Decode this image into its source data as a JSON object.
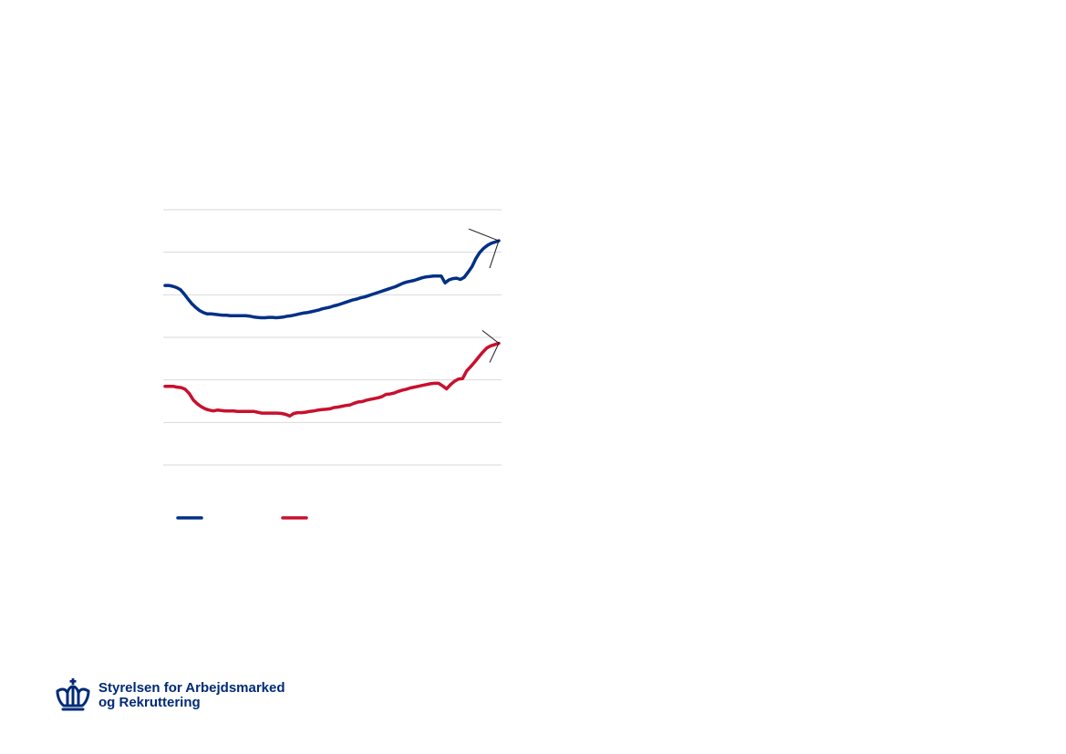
{
  "org": {
    "name_line1": "Styrelsen for Arbejdsmarked",
    "name_line2": "og Rekruttering",
    "logo_icon": "crown-icon",
    "brand_color": "#002a78"
  },
  "chart_data": {
    "type": "line",
    "title": "",
    "xlabel": "",
    "ylabel": "",
    "ylim": [
      0,
      6
    ],
    "grid": true,
    "legend_position": "bottom",
    "series": [
      {
        "color": "#003087",
        "values": [
          4.22,
          4.22,
          4.2,
          4.17,
          4.12,
          4.02,
          3.9,
          3.79,
          3.7,
          3.63,
          3.58,
          3.55,
          3.55,
          3.54,
          3.53,
          3.52,
          3.52,
          3.51,
          3.51,
          3.51,
          3.51,
          3.51,
          3.5,
          3.48,
          3.47,
          3.46,
          3.46,
          3.47,
          3.47,
          3.46,
          3.47,
          3.48,
          3.5,
          3.51,
          3.53,
          3.55,
          3.57,
          3.58,
          3.6,
          3.62,
          3.64,
          3.67,
          3.69,
          3.71,
          3.74,
          3.76,
          3.79,
          3.82,
          3.85,
          3.88,
          3.9,
          3.93,
          3.95,
          3.98,
          4.01,
          4.04,
          4.07,
          4.1,
          4.13,
          4.16,
          4.19,
          4.23,
          4.27,
          4.3,
          4.32,
          4.34,
          4.37,
          4.4,
          4.42,
          4.43,
          4.44,
          4.44,
          4.44,
          4.28,
          4.35,
          4.38,
          4.39,
          4.36,
          4.41,
          4.53,
          4.66,
          4.85,
          4.99,
          5.09,
          5.16,
          5.21,
          5.24,
          5.27
        ]
      },
      {
        "color": "#c8102e",
        "values": [
          1.85,
          1.85,
          1.85,
          1.83,
          1.82,
          1.78,
          1.68,
          1.53,
          1.44,
          1.37,
          1.32,
          1.29,
          1.27,
          1.29,
          1.28,
          1.27,
          1.27,
          1.27,
          1.26,
          1.26,
          1.26,
          1.26,
          1.26,
          1.24,
          1.22,
          1.22,
          1.22,
          1.22,
          1.22,
          1.21,
          1.19,
          1.15,
          1.21,
          1.23,
          1.23,
          1.24,
          1.26,
          1.27,
          1.29,
          1.3,
          1.31,
          1.32,
          1.35,
          1.36,
          1.38,
          1.4,
          1.41,
          1.45,
          1.48,
          1.49,
          1.52,
          1.54,
          1.56,
          1.58,
          1.61,
          1.66,
          1.67,
          1.69,
          1.73,
          1.76,
          1.78,
          1.81,
          1.83,
          1.85,
          1.87,
          1.89,
          1.91,
          1.92,
          1.92,
          1.86,
          1.79,
          1.89,
          1.97,
          2.02,
          2.03,
          2.21,
          2.31,
          2.42,
          2.54,
          2.65,
          2.75,
          2.8,
          2.83,
          2.86
        ]
      }
    ]
  }
}
